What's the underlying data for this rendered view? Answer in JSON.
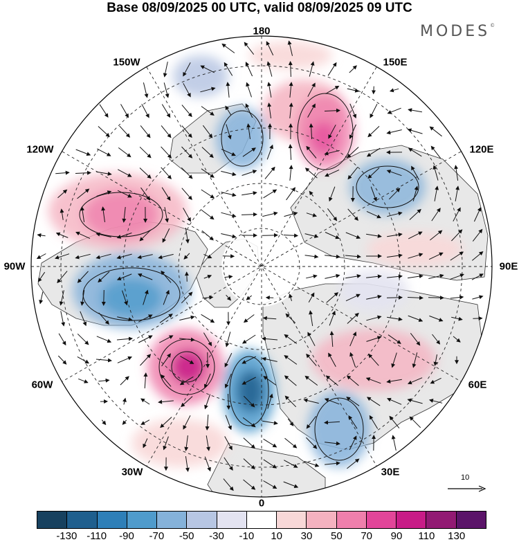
{
  "title": "Base 08/09/2025 00 UTC, valid 08/09/2025 09 UTC",
  "brand": "MODES",
  "brand_mark": "©",
  "longitude_labels": {
    "top": "180",
    "bottom": "0",
    "left": "90W",
    "right": "90E",
    "upper_left": "150W",
    "upper_right": "150E",
    "mid_left": "120W",
    "mid_right": "120E",
    "lower_left": "60W",
    "lower_right": "60E",
    "bottom_left": "30W",
    "bottom_right": "30E"
  },
  "reference_vector": {
    "label": "10"
  },
  "colorbar": {
    "colors": [
      "#17415f",
      "#1f5f8e",
      "#2e7fb8",
      "#4f9bcc",
      "#85b2da",
      "#b7c6e3",
      "#e3e3f1",
      "#ffffff",
      "#f8d8d8",
      "#f5b2c0",
      "#ef7fac",
      "#e24599",
      "#c81c87",
      "#921a73",
      "#5b1469"
    ],
    "ticks": [
      "-130",
      "-110",
      "-90",
      "-70",
      "-50",
      "-30",
      "-10",
      "10",
      "30",
      "50",
      "70",
      "90",
      "110",
      "130"
    ]
  },
  "map_colors": {
    "land": "#e8e8e8",
    "coast": "#333333",
    "grid": "#222222",
    "arrow": "#111111"
  }
}
